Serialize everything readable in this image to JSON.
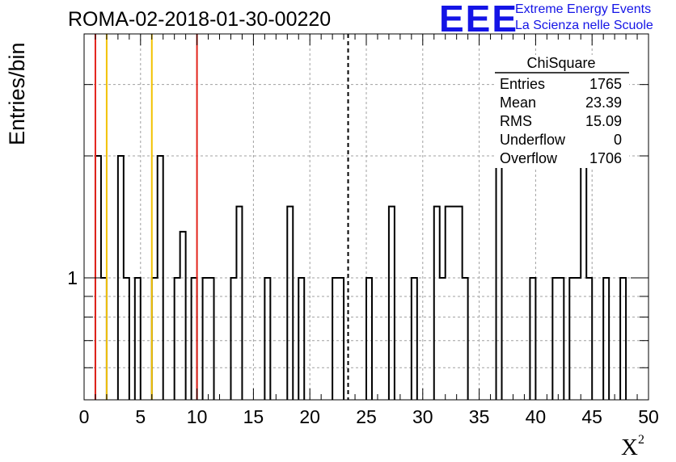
{
  "title": "ROMA-02-2018-01-30-00220",
  "logo": {
    "mark": "EEE",
    "line1": "Extreme Energy Events",
    "line2": "La Scienza nelle Scuole",
    "color": "#1414e6"
  },
  "colors": {
    "histogram": "#000000",
    "grid": "#a0a0a0",
    "red_line": "#e3241c",
    "yellow_line": "#f2c200",
    "mean_line": "#000000"
  },
  "stats": {
    "title": "ChiSquare",
    "rows": [
      {
        "label": "Entries",
        "value": "1765"
      },
      {
        "label": "Mean",
        "value": "23.39"
      },
      {
        "label": "RMS",
        "value": "15.09"
      },
      {
        "label": "Underflow",
        "value": "0"
      },
      {
        "label": "Overflow",
        "value": "1706"
      }
    ]
  },
  "chart_data": {
    "type": "bar",
    "xlabel": "X",
    "xlabel_sup": "2",
    "ylabel": "Entries/bin",
    "xlim": [
      0,
      50
    ],
    "ylim_log": [
      0.5,
      4
    ],
    "y_scale": "log",
    "grid": true,
    "x_ticks": [
      "0",
      "5",
      "10",
      "15",
      "20",
      "25",
      "30",
      "35",
      "40",
      "45",
      "50"
    ],
    "y_tick_labels": [
      {
        "value": 1,
        "label": "1"
      }
    ],
    "bin_width": 0.5,
    "bins": [
      {
        "x": 1.0,
        "y": 2
      },
      {
        "x": 1.5,
        "y": 1
      },
      {
        "x": 3.0,
        "y": 2
      },
      {
        "x": 3.5,
        "y": 1
      },
      {
        "x": 4.5,
        "y": 1
      },
      {
        "x": 6.0,
        "y": 1
      },
      {
        "x": 6.5,
        "y": 2
      },
      {
        "x": 8.0,
        "y": 1
      },
      {
        "x": 8.5,
        "y": 1.3
      },
      {
        "x": 9.5,
        "y": 1
      },
      {
        "x": 10.5,
        "y": 1
      },
      {
        "x": 11.0,
        "y": 1
      },
      {
        "x": 13.0,
        "y": 1
      },
      {
        "x": 13.5,
        "y": 1.5
      },
      {
        "x": 16.0,
        "y": 1
      },
      {
        "x": 18.0,
        "y": 1.5
      },
      {
        "x": 19.0,
        "y": 1
      },
      {
        "x": 22.0,
        "y": 1
      },
      {
        "x": 22.5,
        "y": 1
      },
      {
        "x": 25.0,
        "y": 1
      },
      {
        "x": 27.0,
        "y": 1.5
      },
      {
        "x": 29.0,
        "y": 1
      },
      {
        "x": 31.0,
        "y": 1.5
      },
      {
        "x": 31.5,
        "y": 1
      },
      {
        "x": 32.0,
        "y": 1.5
      },
      {
        "x": 32.5,
        "y": 1.5
      },
      {
        "x": 33.0,
        "y": 1.5
      },
      {
        "x": 33.5,
        "y": 1
      },
      {
        "x": 36.5,
        "y": 2
      },
      {
        "x": 39.5,
        "y": 1
      },
      {
        "x": 41.5,
        "y": 1
      },
      {
        "x": 42.0,
        "y": 1
      },
      {
        "x": 43.0,
        "y": 1
      },
      {
        "x": 43.5,
        "y": 1
      },
      {
        "x": 44.0,
        "y": 2
      },
      {
        "x": 44.5,
        "y": 1
      },
      {
        "x": 46.0,
        "y": 1
      },
      {
        "x": 47.5,
        "y": 1
      }
    ],
    "vertical_lines": [
      {
        "x": 1,
        "color": "red"
      },
      {
        "x": 2,
        "color": "yellow"
      },
      {
        "x": 6,
        "color": "yellow"
      },
      {
        "x": 10,
        "color": "red"
      },
      {
        "x": 23.39,
        "color": "black-dashed"
      }
    ]
  }
}
